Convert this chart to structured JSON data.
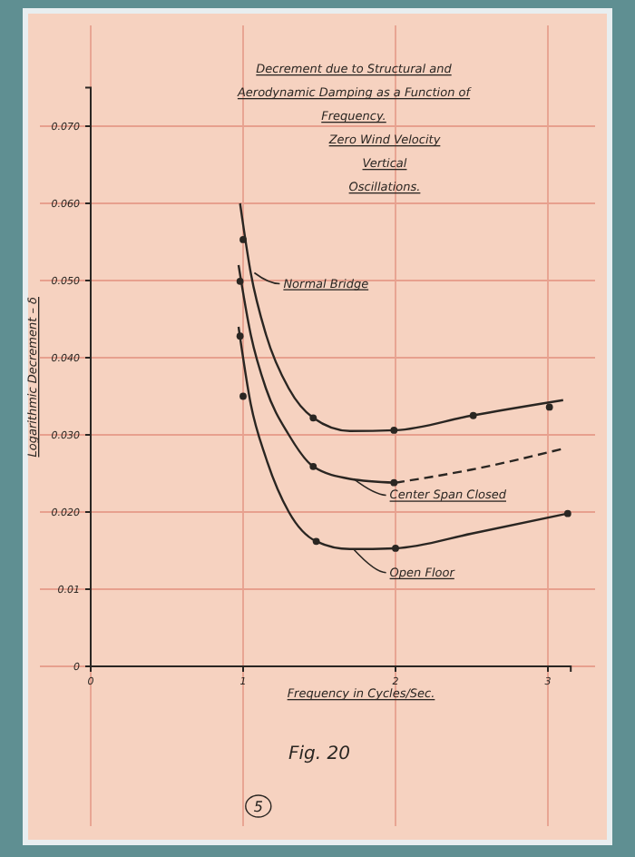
{
  "chart_data": {
    "type": "line",
    "title": "Decrement due to Structural and Aerodynamic Damping as a Function of Frequency.",
    "subtitle": "Zero Wind Velocity Vertical Oscillations.",
    "xlabel": "Frequency in Cycles/Sec.",
    "ylabel": "Logarithmic Decrement – δ",
    "annotations": [
      "Fig. 20",
      "5"
    ],
    "xlim": [
      0,
      3.15
    ],
    "xticks": [
      0,
      1,
      2,
      3
    ],
    "ylim": [
      0,
      0.075
    ],
    "yticks": [
      0,
      0.01,
      {
        "value": 0.02,
        "label": "0.020"
      },
      {
        "value": 0.03,
        "label": "0.030"
      },
      {
        "value": 0.04,
        "label": "0.040"
      },
      {
        "value": 0.05,
        "label": "0.050"
      },
      {
        "value": 0.06,
        "label": "0.060"
      },
      {
        "value": 0.07,
        "label": "0.070"
      }
    ],
    "grid": true,
    "legend": "right",
    "marker": "none",
    "line_style": "solid",
    "series": [
      {
        "name": "Normal Bridge",
        "color": "#2a2622",
        "x": [
          0.98,
          1.05,
          1.15,
          1.3,
          1.46,
          1.7,
          2.0,
          2.5,
          3.1
        ],
        "values": [
          0.06,
          0.051,
          0.043,
          0.036,
          0.0322,
          0.0305,
          0.0306,
          0.0325,
          0.0345
        ]
      },
      {
        "name": "Center Span Closed",
        "color": "#2a2622",
        "x": [
          0.97,
          1.05,
          1.15,
          1.3,
          1.46,
          1.7,
          2.0
        ],
        "values": [
          0.052,
          0.043,
          0.036,
          0.03,
          0.0259,
          0.0243,
          0.0238
        ]
      },
      {
        "type": "line",
        "color": "#2a2622",
        "line_style": "dashed",
        "x": [
          2.0,
          2.5,
          3.1
        ],
        "values": [
          0.0238,
          0.0255,
          0.0282
        ]
      },
      {
        "name": "Open Floor",
        "color": "#2a2622",
        "x": [
          0.97,
          1.05,
          1.15,
          1.3,
          1.48,
          1.7,
          2.0,
          2.5,
          3.13
        ],
        "values": [
          0.044,
          0.034,
          0.027,
          0.02,
          0.0162,
          0.0152,
          0.0153,
          0.0172,
          0.0198
        ]
      },
      {
        "type": "scatter",
        "color": "#2a2622",
        "marker": "circle",
        "x": [
          1.0,
          1.46,
          1.99,
          2.51,
          3.01
        ],
        "values": [
          0.0553,
          0.0322,
          0.0306,
          0.0325,
          0.0336
        ]
      },
      {
        "type": "scatter",
        "color": "#2a2622",
        "marker": "circle",
        "x": [
          0.98,
          1.46,
          1.99
        ],
        "values": [
          0.0499,
          0.0259,
          0.0238
        ]
      },
      {
        "type": "scatter",
        "color": "#2a2622",
        "marker": "circle",
        "x": [
          0.98,
          1.0,
          1.48,
          2.0,
          3.13
        ],
        "values": [
          0.0428,
          0.035,
          0.0162,
          0.0153,
          0.0198
        ]
      }
    ]
  }
}
